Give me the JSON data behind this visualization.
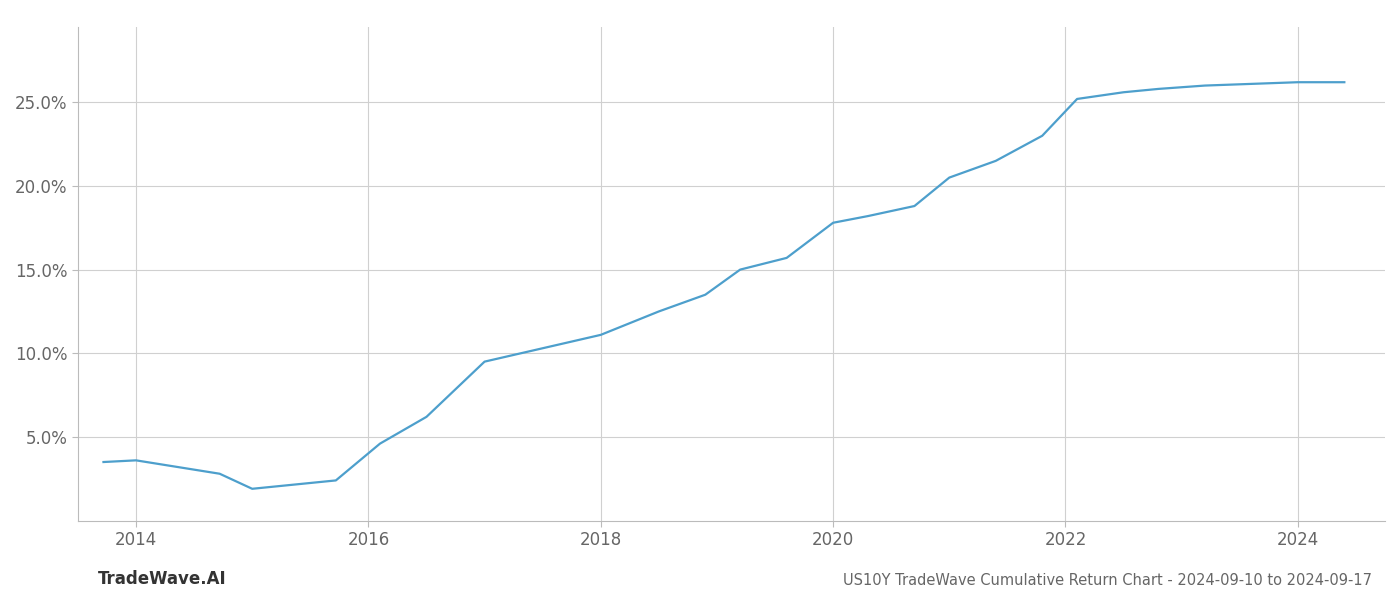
{
  "x": [
    2013.72,
    2014.0,
    2014.72,
    2015.0,
    2015.72,
    2016.1,
    2016.5,
    2017.0,
    2017.5,
    2018.0,
    2018.5,
    2018.9,
    2019.2,
    2019.6,
    2020.0,
    2020.3,
    2020.7,
    2021.0,
    2021.4,
    2021.8,
    2022.1,
    2022.5,
    2022.8,
    2023.2,
    2023.6,
    2024.0,
    2024.4
  ],
  "y": [
    3.5,
    3.6,
    2.8,
    1.9,
    2.4,
    4.6,
    6.2,
    9.5,
    10.3,
    11.1,
    12.5,
    13.5,
    15.0,
    15.7,
    17.8,
    18.2,
    18.8,
    20.5,
    21.5,
    23.0,
    25.2,
    25.6,
    25.8,
    26.0,
    26.1,
    26.2,
    26.2
  ],
  "line_color": "#4d9fcc",
  "line_width": 1.6,
  "title": "US10Y TradeWave Cumulative Return Chart - 2024-09-10 to 2024-09-17",
  "watermark_left": "TradeWave.AI",
  "xlim": [
    2013.5,
    2024.75
  ],
  "ylim": [
    0,
    29.5
  ],
  "yticks": [
    5,
    10,
    15,
    20,
    25
  ],
  "xticks": [
    2014,
    2016,
    2018,
    2020,
    2022,
    2024
  ],
  "background_color": "#ffffff",
  "grid_color": "#d0d0d0",
  "title_fontsize": 10.5,
  "tick_fontsize": 12,
  "watermark_fontsize": 12
}
